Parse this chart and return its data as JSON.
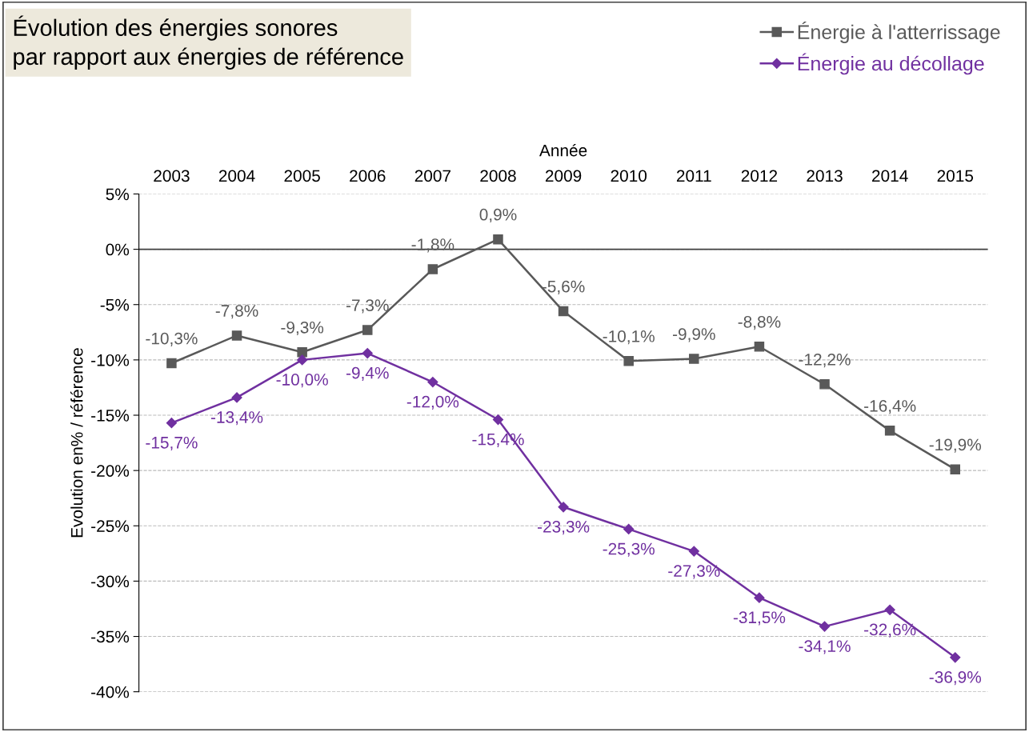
{
  "chart_data": {
    "type": "line",
    "title": "Évolution des énergies sonores\npar rapport aux énergies de référence",
    "xlabel": "Année",
    "ylabel": "Evolution en% / référence",
    "categories": [
      "2003",
      "2004",
      "2005",
      "2006",
      "2007",
      "2008",
      "2009",
      "2010",
      "2011",
      "2012",
      "2013",
      "2014",
      "2015"
    ],
    "series": [
      {
        "name": "Énergie à l'atterrissage",
        "color": "#595959",
        "marker": "square",
        "values": [
          -10.3,
          -7.8,
          -9.3,
          -7.3,
          -1.8,
          0.9,
          -5.6,
          -10.1,
          -9.9,
          -8.8,
          -12.2,
          -16.4,
          -19.9
        ],
        "value_labels": [
          "-10,3%",
          "-7,8%",
          "-9,3%",
          "-7,3%",
          "-1,8%",
          "0,9%",
          "-5,6%",
          "-10,1%",
          "-9,9%",
          "-8,8%",
          "-12,2%",
          "-16,4%",
          "-19,9%"
        ]
      },
      {
        "name": "Énergie au décollage",
        "color": "#7030a0",
        "marker": "diamond",
        "values": [
          -15.7,
          -13.4,
          -10.0,
          -9.4,
          -12.0,
          -15.4,
          -23.3,
          -25.3,
          -27.3,
          -31.5,
          -34.1,
          -32.6,
          -36.9
        ],
        "value_labels": [
          "-15,7%",
          "-13,4%",
          "-10,0%",
          "-9,4%",
          "-12,0%",
          "-15,4%",
          "-23,3%",
          "-25,3%",
          "-27,3%",
          "-31,5%",
          "-34,1%",
          "-32,6%",
          "-36,9%"
        ]
      }
    ],
    "ylim": [
      -40,
      5
    ],
    "yticks": [
      {
        "value": 5,
        "label": "5%"
      },
      {
        "value": 0,
        "label": "0%"
      },
      {
        "value": -5,
        "label": "-5%"
      },
      {
        "value": -10,
        "label": "-10%"
      },
      {
        "value": -15,
        "label": "-15%"
      },
      {
        "value": -20,
        "label": "-20%"
      },
      {
        "value": -25,
        "label": "-25%"
      },
      {
        "value": -30,
        "label": "-30%"
      },
      {
        "value": -35,
        "label": "-35%"
      },
      {
        "value": -40,
        "label": "-40%"
      }
    ],
    "ref_lines": [
      {
        "axis": "y",
        "value": 0,
        "color": "#404040",
        "line_style": "solid"
      }
    ],
    "grid": "y",
    "legend": "top right",
    "line_style": "solid"
  }
}
